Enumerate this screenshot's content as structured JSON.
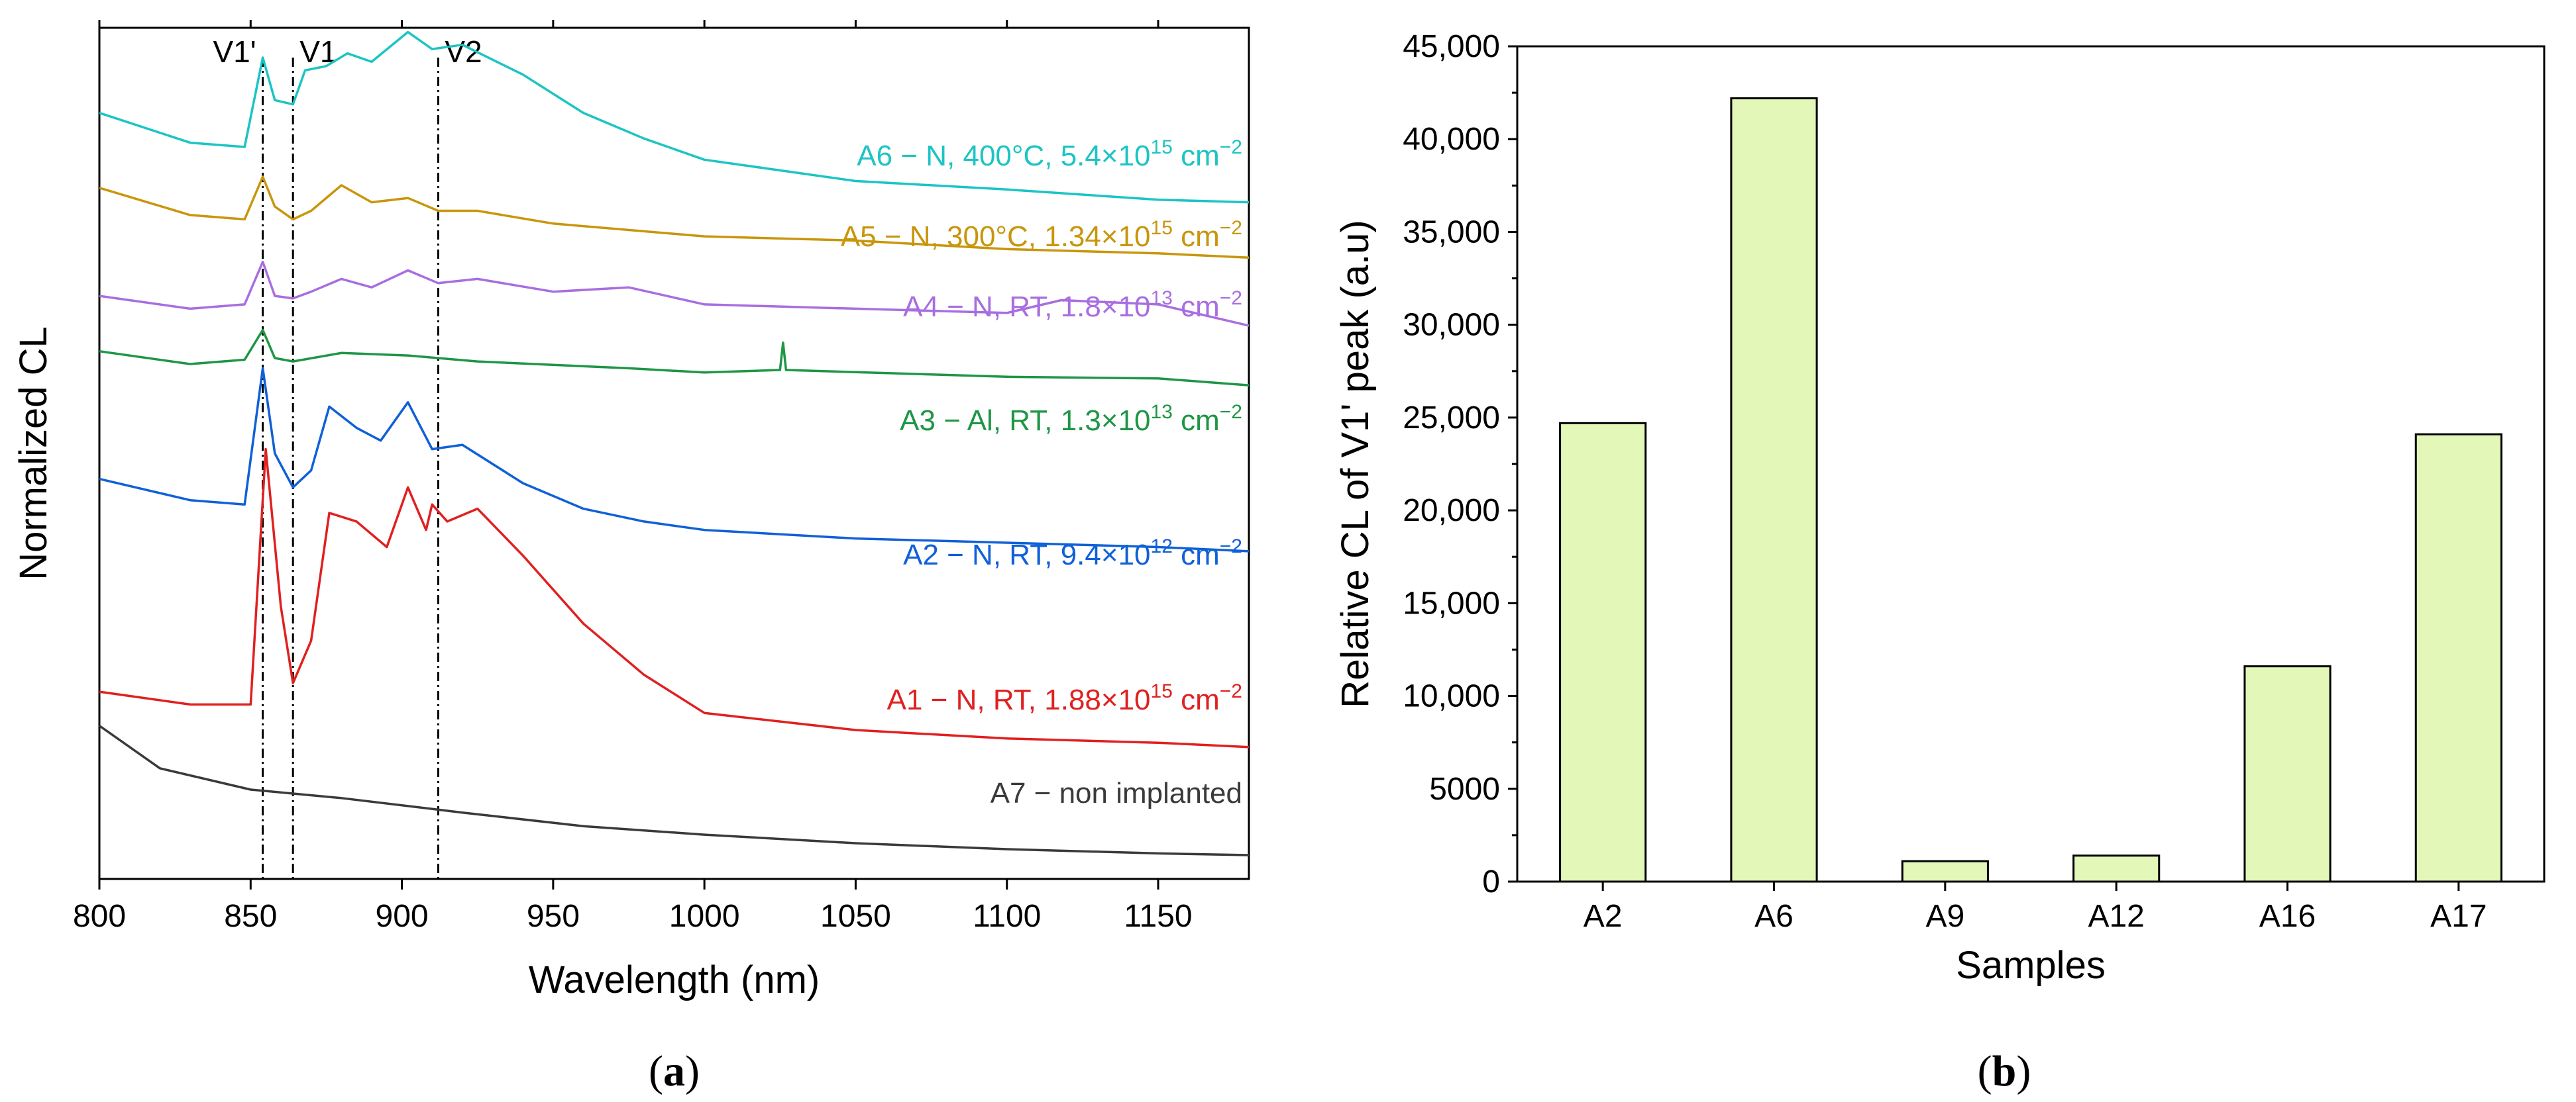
{
  "chart_data": [
    {
      "type": "line",
      "panel_label": "(a)",
      "panel_letter": "a",
      "xlabel": "Wavelength (nm)",
      "ylabel": "Normalized CL",
      "xlim": [
        800,
        1180
      ],
      "xticks": [
        800,
        850,
        900,
        950,
        1000,
        1050,
        1100,
        1150
      ],
      "ylim": [
        0,
        10
      ],
      "yticks_shown": false,
      "reference_lines": [
        {
          "name": "V1'",
          "x": 854
        },
        {
          "name": "V1",
          "x": 864
        },
        {
          "name": "V2",
          "x": 912
        }
      ],
      "series": [
        {
          "name": "A6 − N, 400°C, 5.4×10^15 cm^−2",
          "label_parts": [
            "A6 − N, 400°C, 5.4×10",
            "15",
            " cm",
            "−2"
          ],
          "color": "#1cc4c4",
          "points": [
            [
              800,
              9.0
            ],
            [
              830,
              8.65
            ],
            [
              848,
              8.6
            ],
            [
              854,
              9.65
            ],
            [
              858,
              9.15
            ],
            [
              864,
              9.1
            ],
            [
              868,
              9.5
            ],
            [
              875,
              9.55
            ],
            [
              882,
              9.7
            ],
            [
              890,
              9.6
            ],
            [
              902,
              9.95
            ],
            [
              910,
              9.75
            ],
            [
              920,
              9.8
            ],
            [
              940,
              9.45
            ],
            [
              960,
              9.0
            ],
            [
              980,
              8.7
            ],
            [
              1000,
              8.45
            ],
            [
              1050,
              8.2
            ],
            [
              1100,
              8.1
            ],
            [
              1150,
              7.98
            ],
            [
              1180,
              7.95
            ]
          ]
        },
        {
          "name": "A5 − N, 300°C, 1.34×10^15 cm^−2",
          "label_parts": [
            "A5 − N, 300°C, 1.34×10",
            "15",
            " cm",
            "−2"
          ],
          "color": "#c8960c",
          "points": [
            [
              800,
              8.12
            ],
            [
              830,
              7.8
            ],
            [
              848,
              7.75
            ],
            [
              854,
              8.25
            ],
            [
              858,
              7.9
            ],
            [
              864,
              7.75
            ],
            [
              870,
              7.85
            ],
            [
              880,
              8.15
            ],
            [
              890,
              7.95
            ],
            [
              902,
              8.0
            ],
            [
              912,
              7.85
            ],
            [
              925,
              7.85
            ],
            [
              950,
              7.7
            ],
            [
              1000,
              7.55
            ],
            [
              1050,
              7.5
            ],
            [
              1100,
              7.4
            ],
            [
              1150,
              7.35
            ],
            [
              1180,
              7.3
            ]
          ]
        },
        {
          "name": "A4 − N, RT, 1.8×10^13 cm^−2",
          "label_parts": [
            "A4 − N, RT, 1.8×10",
            "13",
            " cm",
            "−2"
          ],
          "color": "#a86ee0",
          "points": [
            [
              800,
              6.85
            ],
            [
              830,
              6.7
            ],
            [
              848,
              6.75
            ],
            [
              854,
              7.25
            ],
            [
              858,
              6.85
            ],
            [
              864,
              6.82
            ],
            [
              870,
              6.9
            ],
            [
              880,
              7.05
            ],
            [
              890,
              6.95
            ],
            [
              902,
              7.15
            ],
            [
              912,
              7.0
            ],
            [
              925,
              7.05
            ],
            [
              950,
              6.9
            ],
            [
              975,
              6.95
            ],
            [
              1000,
              6.75
            ],
            [
              1050,
              6.7
            ],
            [
              1100,
              6.65
            ],
            [
              1118,
              6.8
            ],
            [
              1150,
              6.75
            ],
            [
              1180,
              6.5
            ]
          ]
        },
        {
          "name": "A3 − Al, RT, 1.3×10^13 cm^−2",
          "label_parts": [
            "A3 − Al, RT, 1.3×10",
            "13",
            " cm",
            "−2"
          ],
          "color": "#1e9646",
          "points": [
            [
              800,
              6.2
            ],
            [
              830,
              6.05
            ],
            [
              848,
              6.1
            ],
            [
              854,
              6.45
            ],
            [
              858,
              6.12
            ],
            [
              864,
              6.08
            ],
            [
              880,
              6.18
            ],
            [
              902,
              6.15
            ],
            [
              925,
              6.08
            ],
            [
              975,
              6.0
            ],
            [
              1000,
              5.95
            ],
            [
              1025,
              5.98
            ],
            [
              1026,
              6.3
            ],
            [
              1027,
              5.98
            ],
            [
              1100,
              5.9
            ],
            [
              1150,
              5.88
            ],
            [
              1180,
              5.8
            ]
          ]
        },
        {
          "name": "A2 − N, RT, 9.4×10^12 cm^−2",
          "label_parts": [
            "A2 − N, RT, 9.4×10",
            "12",
            " cm",
            "−2"
          ],
          "color": "#1060d8",
          "points": [
            [
              800,
              4.7
            ],
            [
              830,
              4.45
            ],
            [
              848,
              4.4
            ],
            [
              854,
              6.0
            ],
            [
              858,
              5.0
            ],
            [
              864,
              4.6
            ],
            [
              870,
              4.8
            ],
            [
              876,
              5.55
            ],
            [
              885,
              5.3
            ],
            [
              893,
              5.15
            ],
            [
              902,
              5.6
            ],
            [
              910,
              5.05
            ],
            [
              920,
              5.1
            ],
            [
              940,
              4.65
            ],
            [
              960,
              4.35
            ],
            [
              980,
              4.2
            ],
            [
              1000,
              4.1
            ],
            [
              1050,
              4.0
            ],
            [
              1100,
              3.95
            ],
            [
              1150,
              3.9
            ],
            [
              1180,
              3.85
            ]
          ]
        },
        {
          "name": "A1 − N, RT, 1.88×10^15 cm^−2",
          "label_parts": [
            "A1 − N, RT, 1.88×10",
            "15",
            " cm",
            "−2"
          ],
          "color": "#e02020",
          "points": [
            [
              800,
              2.2
            ],
            [
              830,
              2.05
            ],
            [
              850,
              2.05
            ],
            [
              855,
              5.05
            ],
            [
              860,
              3.2
            ],
            [
              864,
              2.3
            ],
            [
              870,
              2.8
            ],
            [
              876,
              4.3
            ],
            [
              885,
              4.2
            ],
            [
              895,
              3.9
            ],
            [
              902,
              4.6
            ],
            [
              908,
              4.1
            ],
            [
              910,
              4.4
            ],
            [
              915,
              4.2
            ],
            [
              925,
              4.35
            ],
            [
              940,
              3.8
            ],
            [
              960,
              3.0
            ],
            [
              980,
              2.4
            ],
            [
              1000,
              1.95
            ],
            [
              1050,
              1.75
            ],
            [
              1100,
              1.65
            ],
            [
              1150,
              1.6
            ],
            [
              1180,
              1.55
            ]
          ]
        },
        {
          "name": "A7 − non implanted",
          "label_parts": [
            "A7 − non implanted",
            "",
            "",
            ""
          ],
          "color": "#3a3a3a",
          "points": [
            [
              800,
              1.8
            ],
            [
              820,
              1.3
            ],
            [
              850,
              1.05
            ],
            [
              880,
              0.95
            ],
            [
              920,
              0.78
            ],
            [
              960,
              0.62
            ],
            [
              1000,
              0.52
            ],
            [
              1050,
              0.42
            ],
            [
              1100,
              0.35
            ],
            [
              1150,
              0.3
            ],
            [
              1180,
              0.28
            ]
          ]
        }
      ]
    },
    {
      "type": "bar",
      "panel_label": "(b)",
      "panel_letter": "b",
      "xlabel": "Samples",
      "ylabel": "Relative CL of V1' peak (a.u)",
      "categories": [
        "A2",
        "A6",
        "A9",
        "A12",
        "A16",
        "A17"
      ],
      "values": [
        24700,
        42200,
        1100,
        1400,
        11600,
        24100
      ],
      "ylim": [
        0,
        45000
      ],
      "yticks": [
        0,
        5000,
        10000,
        15000,
        20000,
        25000,
        30000,
        35000,
        40000,
        45000
      ],
      "ytick_labels": [
        "0",
        "5000",
        "10,000",
        "15,000",
        "20,000",
        "25,000",
        "30,000",
        "35,000",
        "40,000",
        "45,000"
      ],
      "bar_color": "#e2f7b8",
      "bar_edge": "#000000"
    }
  ]
}
